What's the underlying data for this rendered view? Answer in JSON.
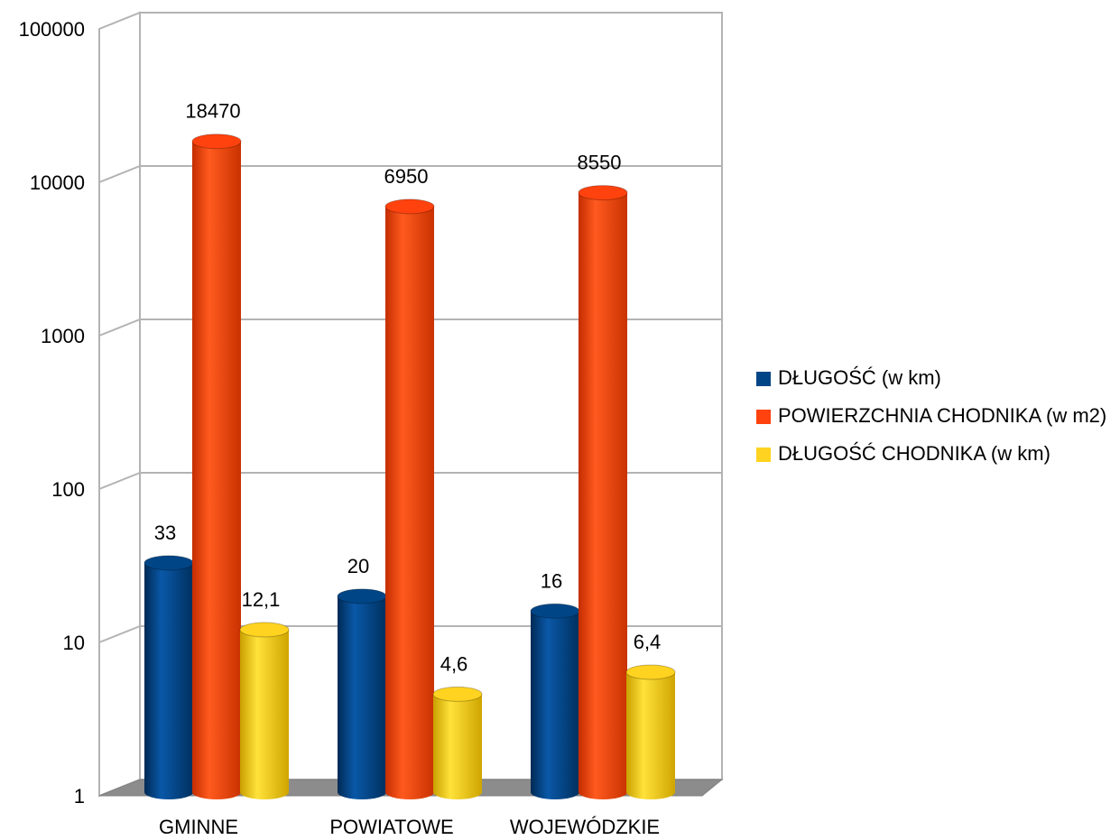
{
  "chart_data": {
    "type": "bar",
    "yscale": "log",
    "ylim": [
      1,
      100000
    ],
    "ytick_labels": [
      "1",
      "10",
      "100",
      "1000",
      "10000",
      "100000"
    ],
    "categories": [
      "GMINNE",
      "POWIATOWE",
      "WOJEWÓDZKIE"
    ],
    "series": [
      {
        "name": "DŁUGOŚĆ (w km)",
        "color": "#004586",
        "values": [
          33,
          20,
          16
        ],
        "labels": [
          "33",
          "20",
          "16"
        ]
      },
      {
        "name": "POWIERZCHNIA CHODNIKA (w m2)",
        "color": "#FF420E",
        "values": [
          18470,
          6950,
          8550
        ],
        "labels": [
          "18470",
          "6950",
          "8550"
        ]
      },
      {
        "name": "DŁUGOŚĆ CHODNIKA (w km)",
        "color": "#FFD320",
        "values": [
          12.1,
          4.6,
          6.4
        ],
        "labels": [
          "12,1",
          "4,6",
          "6,4"
        ]
      }
    ],
    "grid": true,
    "legend_position": "right",
    "style": "3d-cylinder"
  }
}
